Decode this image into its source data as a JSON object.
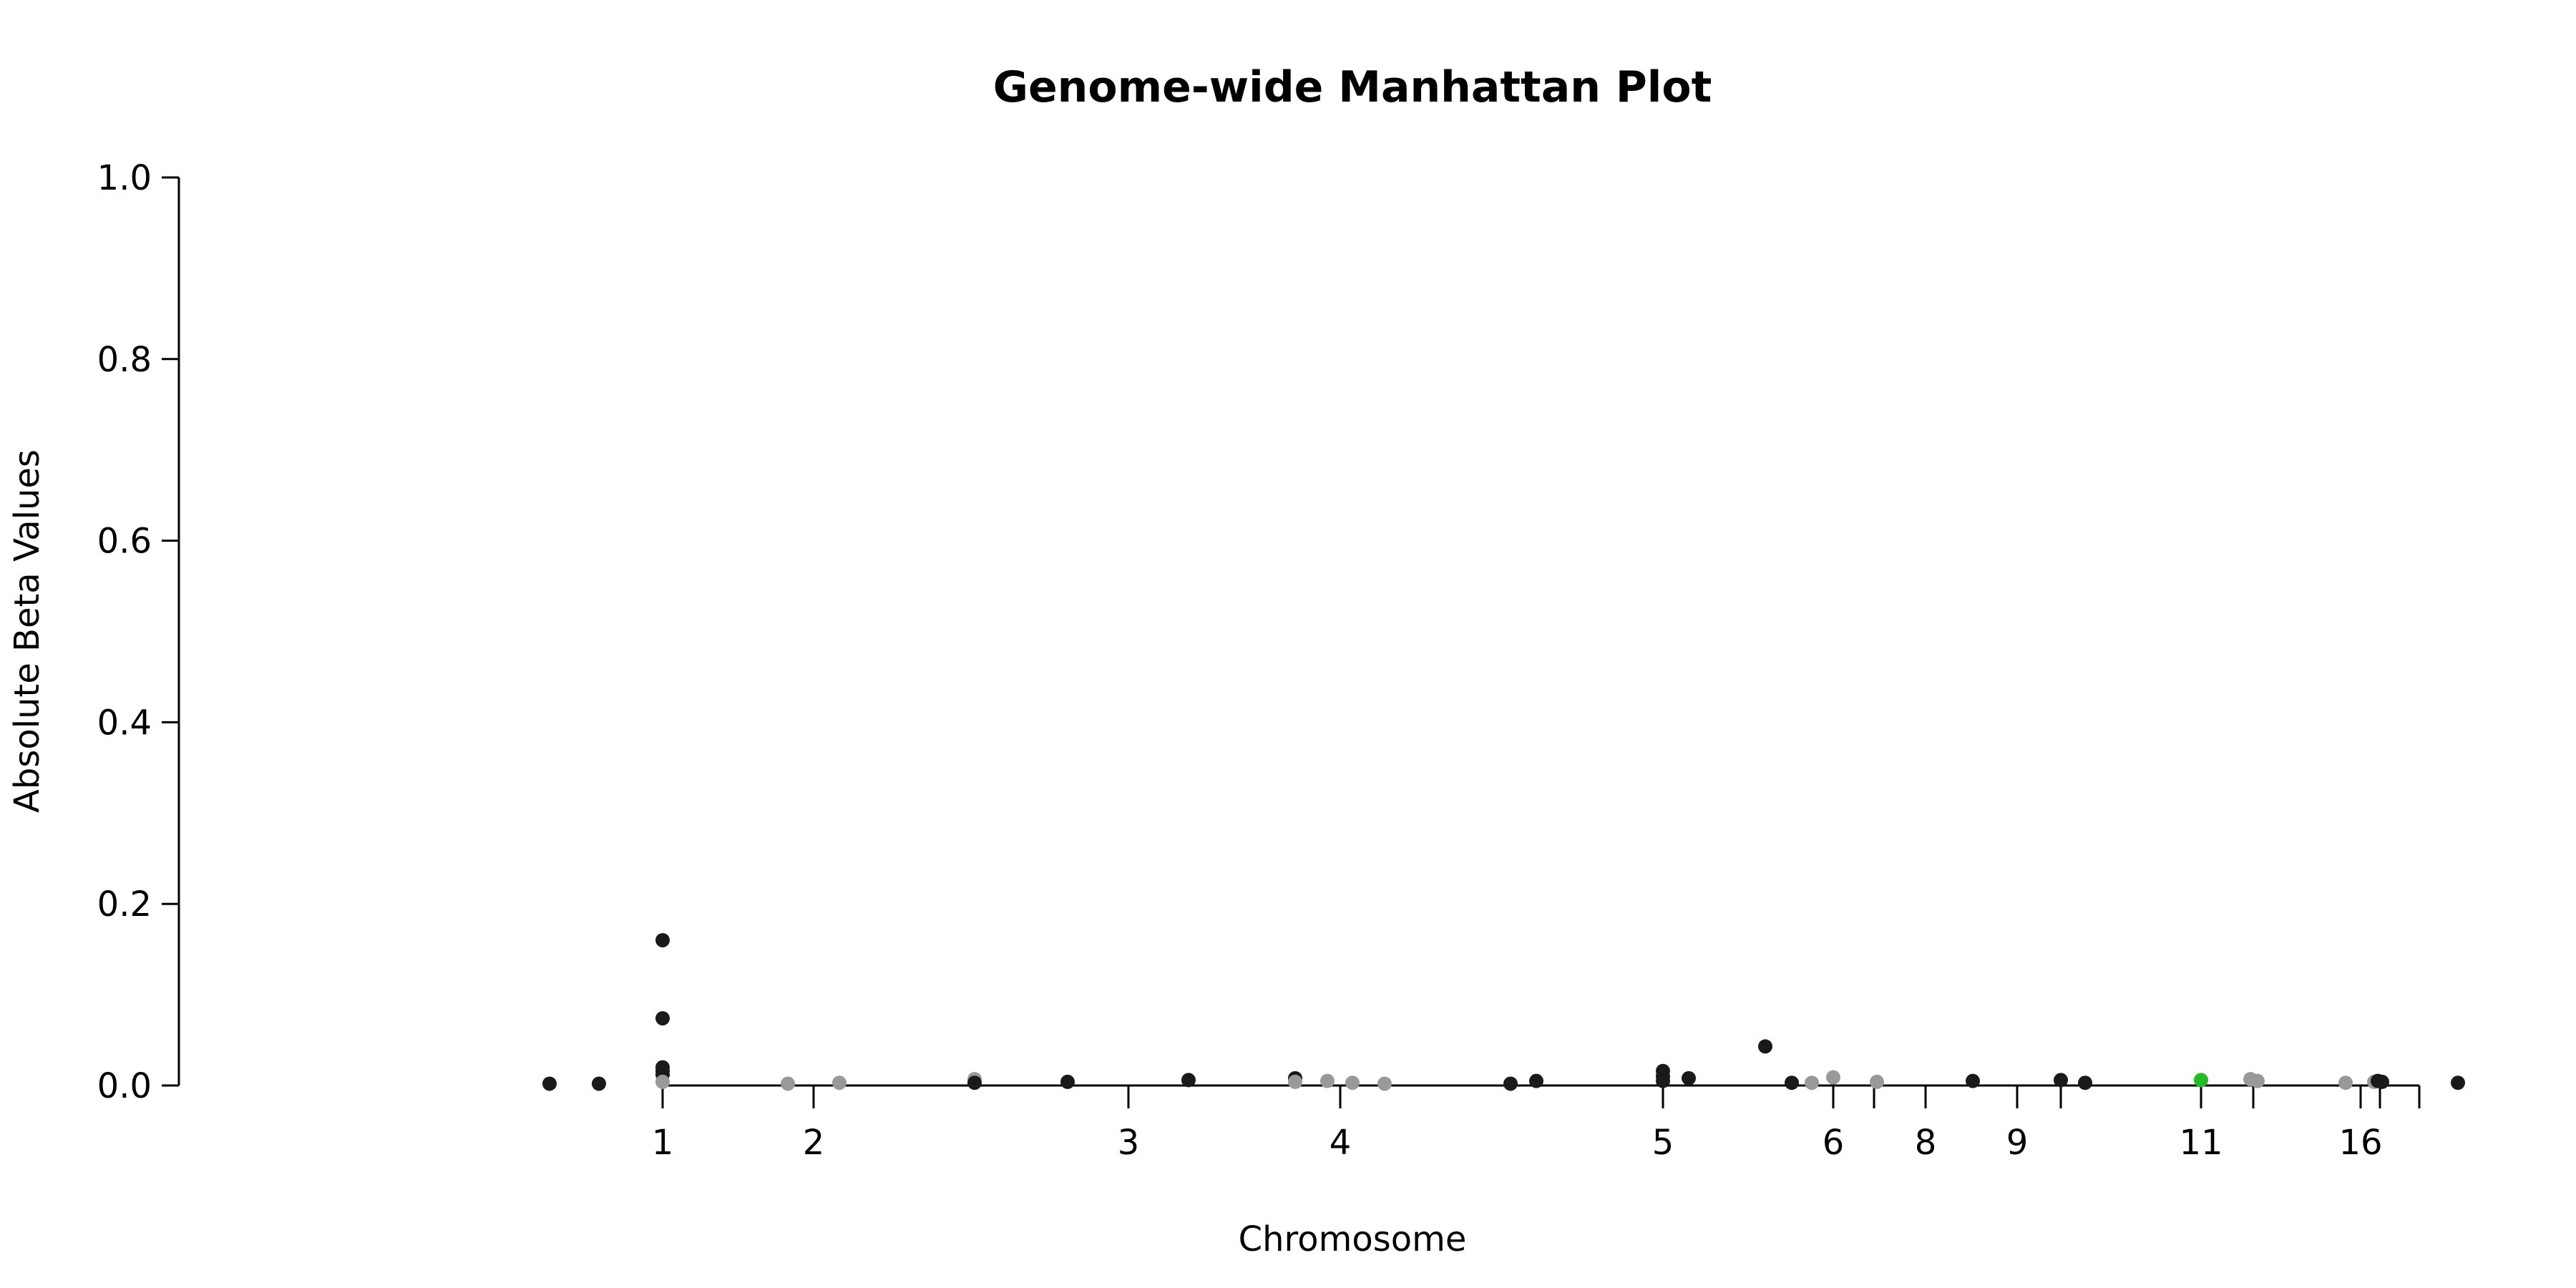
{
  "chart_data": {
    "type": "scatter",
    "title": "Genome-wide Manhattan Plot",
    "xlabel": "Chromosome",
    "ylabel": "Absolute Beta Values",
    "ylim": [
      0,
      1.0
    ],
    "y_ticks": [
      "0.0",
      "0.2",
      "0.4",
      "0.6",
      "0.8",
      "1.0"
    ],
    "x_tick_labels": [
      {
        "label": "1"
      },
      {
        "label": "2"
      },
      {
        "label": "3"
      },
      {
        "label": "4"
      },
      {
        "label": "5"
      },
      {
        "label": "6"
      },
      {
        "label": "8"
      },
      {
        "label": "9"
      },
      {
        "label": "11"
      },
      {
        "label": "16"
      }
    ],
    "x_ticks_unlabeled_count": 5,
    "grid": false,
    "legend": "none",
    "colors": {
      "dark": "#1a1a1a",
      "light": "#999999",
      "highlight": "#22bb22"
    },
    "points": [
      {
        "chr": "1",
        "y": 0.16,
        "color": "dark"
      },
      {
        "chr": "1",
        "y": 0.074,
        "color": "dark"
      },
      {
        "chr": "1",
        "y": 0.02,
        "color": "dark"
      },
      {
        "chr": "1",
        "y": 0.016,
        "color": "dark"
      },
      {
        "chr": "1",
        "y": 0.012,
        "color": "dark"
      },
      {
        "chr": "1",
        "y": 0.004,
        "color": "light"
      },
      {
        "chr": "1",
        "y": 0.002,
        "color": "dark"
      },
      {
        "chr": "1",
        "y": 0.002,
        "color": "dark"
      },
      {
        "chr": "1",
        "y": 0.003,
        "color": "dark"
      },
      {
        "chr": "2",
        "y": 0.002,
        "color": "light"
      },
      {
        "chr": "2",
        "y": 0.003,
        "color": "light"
      },
      {
        "chr": "2",
        "y": 0.007,
        "color": "light"
      },
      {
        "chr": "2",
        "y": 0.003,
        "color": "dark"
      },
      {
        "chr": "3",
        "y": 0.004,
        "color": "dark"
      },
      {
        "chr": "3",
        "y": 0.006,
        "color": "dark"
      },
      {
        "chr": "4",
        "y": 0.008,
        "color": "dark"
      },
      {
        "chr": "4",
        "y": 0.004,
        "color": "light"
      },
      {
        "chr": "4",
        "y": 0.005,
        "color": "light"
      },
      {
        "chr": "4",
        "y": 0.003,
        "color": "light"
      },
      {
        "chr": "4",
        "y": 0.002,
        "color": "light"
      },
      {
        "chr": "4",
        "y": 0.002,
        "color": "dark"
      },
      {
        "chr": "4",
        "y": 0.005,
        "color": "dark"
      },
      {
        "chr": "5",
        "y": 0.016,
        "color": "dark"
      },
      {
        "chr": "5",
        "y": 0.01,
        "color": "dark"
      },
      {
        "chr": "5",
        "y": 0.005,
        "color": "dark"
      },
      {
        "chr": "5",
        "y": 0.008,
        "color": "dark"
      },
      {
        "chr": "5",
        "y": 0.043,
        "color": "dark"
      },
      {
        "chr": "5",
        "y": 0.003,
        "color": "dark"
      },
      {
        "chr": "6",
        "y": 0.003,
        "color": "light"
      },
      {
        "chr": "6",
        "y": 0.009,
        "color": "light"
      },
      {
        "chr": "6",
        "y": 0.004,
        "color": "light"
      },
      {
        "chr": "8",
        "y": 0.005,
        "color": "dark"
      },
      {
        "chr": "9",
        "y": 0.006,
        "color": "dark"
      },
      {
        "chr": "9",
        "y": 0.003,
        "color": "dark"
      },
      {
        "chr": "11",
        "y": 0.006,
        "color": "highlight"
      },
      {
        "chr": "11",
        "y": 0.007,
        "color": "light"
      },
      {
        "chr": "11",
        "y": 0.005,
        "color": "light"
      },
      {
        "chr": "16",
        "y": 0.003,
        "color": "light"
      },
      {
        "chr": "16",
        "y": 0.004,
        "color": "light"
      },
      {
        "chr": "16",
        "y": 0.005,
        "color": "dark"
      },
      {
        "chr": "16",
        "y": 0.004,
        "color": "dark"
      }
    ]
  }
}
